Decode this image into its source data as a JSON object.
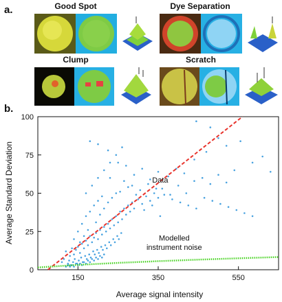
{
  "panel_a": {
    "label": "a.",
    "spots": [
      {
        "title": "Good Spot"
      },
      {
        "title": "Dye Separation"
      },
      {
        "title": "Clump"
      },
      {
        "title": "Scratch"
      }
    ]
  },
  "panel_b": {
    "label": "b."
  },
  "chart_data": {
    "type": "scatter",
    "title": "",
    "xlabel": "Average signal intensity",
    "ylabel": "Average Standard Deviation",
    "xlim": [
      50,
      650
    ],
    "ylim": [
      0,
      100
    ],
    "xticks": [
      "150",
      "350",
      "550"
    ],
    "yticks": [
      "0",
      "25",
      "50",
      "75",
      "100"
    ],
    "grid": false,
    "annotations": [
      {
        "text": "Data",
        "x": 355,
        "y": 57
      },
      {
        "text": "Modelled",
        "x": 390,
        "y": 19
      },
      {
        "text": "instrument noise",
        "x": 390,
        "y": 13
      }
    ],
    "series": [
      {
        "color": "#4aa3e0",
        "marker": "dot",
        "points": [
          [
            120,
            12
          ],
          [
            130,
            9
          ],
          [
            135,
            14
          ],
          [
            140,
            10
          ],
          [
            145,
            13
          ],
          [
            150,
            15
          ],
          [
            155,
            11
          ],
          [
            160,
            17
          ],
          [
            165,
            14
          ],
          [
            170,
            19
          ],
          [
            175,
            16
          ],
          [
            180,
            22
          ],
          [
            185,
            18
          ],
          [
            190,
            21
          ],
          [
            195,
            24
          ],
          [
            200,
            20
          ],
          [
            205,
            26
          ],
          [
            210,
            23
          ],
          [
            215,
            28
          ],
          [
            220,
            25
          ],
          [
            225,
            30
          ],
          [
            230,
            27
          ],
          [
            235,
            33
          ],
          [
            240,
            29
          ],
          [
            245,
            35
          ],
          [
            250,
            31
          ],
          [
            255,
            38
          ],
          [
            260,
            33
          ],
          [
            265,
            40
          ],
          [
            270,
            36
          ],
          [
            275,
            42
          ],
          [
            280,
            38
          ],
          [
            285,
            44
          ],
          [
            290,
            40
          ],
          [
            300,
            46
          ],
          [
            310,
            43
          ],
          [
            320,
            48
          ],
          [
            330,
            45
          ],
          [
            340,
            50
          ],
          [
            350,
            47
          ],
          [
            360,
            53
          ],
          [
            380,
            49
          ],
          [
            400,
            55
          ],
          [
            420,
            50
          ],
          [
            440,
            58
          ],
          [
            460,
            60
          ],
          [
            480,
            56
          ],
          [
            500,
            62
          ],
          [
            520,
            57
          ],
          [
            540,
            65
          ],
          [
            110,
            5
          ],
          [
            115,
            7
          ],
          [
            125,
            4
          ],
          [
            128,
            6
          ],
          [
            132,
            3
          ],
          [
            138,
            5
          ],
          [
            142,
            7
          ],
          [
            148,
            4
          ],
          [
            152,
            6
          ],
          [
            158,
            8
          ],
          [
            162,
            5
          ],
          [
            168,
            9
          ],
          [
            172,
            7
          ],
          [
            178,
            10
          ],
          [
            182,
            8
          ],
          [
            188,
            12
          ],
          [
            192,
            10
          ],
          [
            198,
            13
          ],
          [
            202,
            11
          ],
          [
            208,
            15
          ],
          [
            212,
            13
          ],
          [
            218,
            16
          ],
          [
            222,
            14
          ],
          [
            228,
            18
          ],
          [
            232,
            16
          ],
          [
            238,
            20
          ],
          [
            242,
            18
          ],
          [
            248,
            22
          ],
          [
            252,
            20
          ],
          [
            258,
            24
          ],
          [
            140,
            20
          ],
          [
            150,
            25
          ],
          [
            160,
            30
          ],
          [
            170,
            35
          ],
          [
            180,
            38
          ],
          [
            190,
            42
          ],
          [
            200,
            45
          ],
          [
            210,
            48
          ],
          [
            170,
            50
          ],
          [
            185,
            55
          ],
          [
            200,
            60
          ],
          [
            215,
            65
          ],
          [
            230,
            70
          ],
          [
            245,
            75
          ],
          [
            260,
            80
          ],
          [
            180,
            84
          ],
          [
            200,
            82
          ],
          [
            225,
            78
          ],
          [
            250,
            70
          ],
          [
            270,
            68
          ],
          [
            290,
            62
          ],
          [
            310,
            66
          ],
          [
            330,
            59
          ],
          [
            350,
            64
          ],
          [
            375,
            61
          ],
          [
            395,
            66
          ],
          [
            415,
            63
          ],
          [
            440,
            72
          ],
          [
            470,
            77
          ],
          [
            445,
            97
          ],
          [
            480,
            93
          ],
          [
            500,
            86
          ],
          [
            520,
            81
          ],
          [
            555,
            84
          ],
          [
            630,
            64
          ],
          [
            585,
            70
          ],
          [
            610,
            74
          ],
          [
            230,
            60
          ],
          [
            245,
            50
          ],
          [
            265,
            58
          ],
          [
            285,
            55
          ],
          [
            305,
            52
          ],
          [
            325,
            56
          ],
          [
            345,
            53
          ],
          [
            365,
            49
          ],
          [
            385,
            46
          ],
          [
            405,
            44
          ],
          [
            425,
            42
          ],
          [
            445,
            40
          ],
          [
            465,
            47
          ],
          [
            485,
            45
          ],
          [
            505,
            43
          ],
          [
            525,
            41
          ],
          [
            545,
            39
          ],
          [
            565,
            37
          ],
          [
            585,
            35
          ],
          [
            155,
            18
          ],
          [
            165,
            22
          ],
          [
            175,
            26
          ],
          [
            195,
            31
          ],
          [
            205,
            36
          ],
          [
            215,
            40
          ],
          [
            225,
            44
          ],
          [
            235,
            47
          ],
          [
            255,
            51
          ],
          [
            275,
            54
          ],
          [
            295,
            49
          ],
          [
            315,
            39
          ],
          [
            335,
            42
          ],
          [
            355,
            35
          ],
          [
            120,
            2
          ],
          [
            125,
            3
          ],
          [
            130,
            2
          ],
          [
            135,
            3
          ],
          [
            140,
            2
          ],
          [
            145,
            4
          ],
          [
            150,
            3
          ],
          [
            155,
            4
          ],
          [
            160,
            3
          ],
          [
            165,
            5
          ],
          [
            170,
            4
          ],
          [
            175,
            6
          ],
          [
            180,
            5
          ],
          [
            185,
            7
          ],
          [
            190,
            6
          ],
          [
            195,
            8
          ],
          [
            200,
            7
          ],
          [
            205,
            9
          ],
          [
            210,
            8
          ],
          [
            215,
            10
          ]
        ]
      },
      {
        "color": "#e8322b",
        "style": "dashed",
        "points": [
          [
            75,
            0
          ],
          [
            560,
            100
          ]
        ]
      },
      {
        "color": "#45d21f",
        "style": "dotted",
        "points": [
          [
            50,
            1.5
          ],
          [
            150,
            3.2
          ],
          [
            250,
            4.5
          ],
          [
            350,
            5.6
          ],
          [
            450,
            6.6
          ],
          [
            550,
            7.5
          ],
          [
            650,
            8.3
          ]
        ]
      }
    ]
  }
}
